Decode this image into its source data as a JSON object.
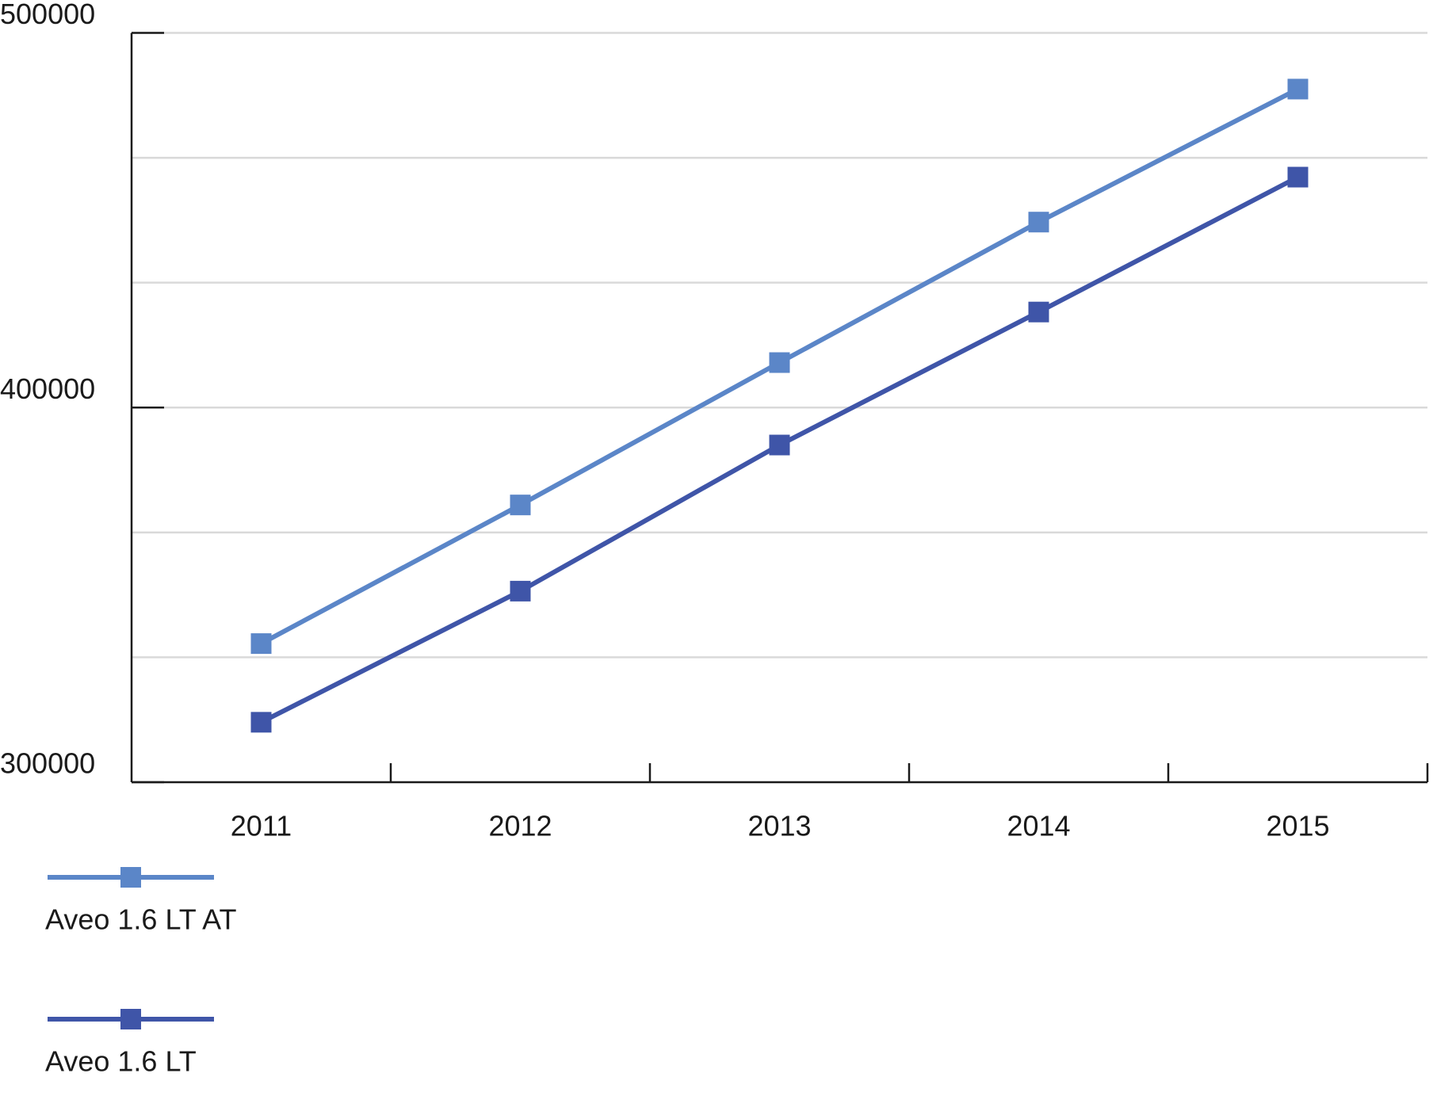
{
  "chart_data": {
    "type": "line",
    "categories": [
      "2011",
      "2012",
      "2013",
      "2014",
      "2015"
    ],
    "series": [
      {
        "name": "Aveo 1.6 LT AT",
        "color": "#5b86c8",
        "values": [
          337000,
          374000,
          412000,
          449500,
          485000
        ]
      },
      {
        "name": "Aveo 1.6 LT",
        "color": "#3f55a8",
        "values": [
          316000,
          351000,
          390000,
          425500,
          461500
        ]
      }
    ],
    "ylim": [
      300000,
      500000
    ],
    "yticks": [
      300000,
      400000,
      500000
    ],
    "minor_yticks": [
      333333.33,
      366666.67,
      433333.33,
      466666.67
    ],
    "grid": true,
    "legend": "bottom"
  }
}
